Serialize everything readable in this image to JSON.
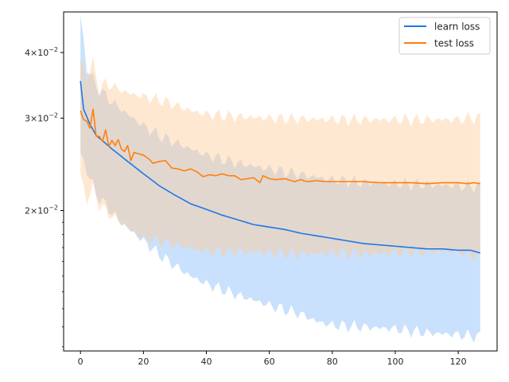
{
  "chart_data": {
    "type": "line",
    "title": "",
    "xlabel": "",
    "ylabel": "",
    "x_range": [
      0,
      127
    ],
    "xlim": [
      -5.35,
      132.35
    ],
    "ylim": [
      0.0108,
      0.0478
    ],
    "y_scale": "log",
    "grid": false,
    "legend_position": "top-right",
    "x_ticks": [
      0,
      20,
      40,
      60,
      80,
      100,
      120
    ],
    "x_tick_labels": [
      "0",
      "20",
      "40",
      "60",
      "80",
      "100",
      "120"
    ],
    "y_ticks": [
      0.02,
      0.03,
      0.04
    ],
    "y_tick_labels": [
      {
        "base": "2×10",
        "exp": "−2"
      },
      {
        "base": "3×10",
        "exp": "−2"
      },
      {
        "base": "4×10",
        "exp": "−2"
      }
    ],
    "series": [
      {
        "name": "learn loss",
        "color": "#1f77e4",
        "band_color": "#9cc9f9",
        "mean_points": [
          [
            0,
            0.0353
          ],
          [
            1,
            0.0312
          ],
          [
            3,
            0.0292
          ],
          [
            5,
            0.0278
          ],
          [
            10,
            0.0262
          ],
          [
            15,
            0.0248
          ],
          [
            20,
            0.0235
          ],
          [
            25,
            0.0223
          ],
          [
            30,
            0.0214
          ],
          [
            35,
            0.0206
          ],
          [
            40,
            0.0201
          ],
          [
            45,
            0.0196
          ],
          [
            50,
            0.0192
          ],
          [
            55,
            0.0188
          ],
          [
            60,
            0.0186
          ],
          [
            65,
            0.0184
          ],
          [
            70,
            0.0181
          ],
          [
            75,
            0.0179
          ],
          [
            80,
            0.0177
          ],
          [
            85,
            0.0175
          ],
          [
            90,
            0.0173
          ],
          [
            95,
            0.0172
          ],
          [
            100,
            0.0171
          ],
          [
            105,
            0.017
          ],
          [
            110,
            0.0169
          ],
          [
            115,
            0.0169
          ],
          [
            120,
            0.0168
          ],
          [
            124,
            0.0168
          ],
          [
            127,
            0.0166
          ]
        ],
        "upper_points": [
          [
            0,
            0.0465
          ],
          [
            2,
            0.0375
          ],
          [
            5,
            0.0345
          ],
          [
            10,
            0.0322
          ],
          [
            15,
            0.0305
          ],
          [
            20,
            0.029
          ],
          [
            25,
            0.0278
          ],
          [
            30,
            0.027
          ],
          [
            35,
            0.0262
          ],
          [
            40,
            0.0255
          ],
          [
            50,
            0.0246
          ],
          [
            60,
            0.024
          ],
          [
            70,
            0.0234
          ],
          [
            80,
            0.0229
          ],
          [
            90,
            0.0226
          ],
          [
            100,
            0.0225
          ],
          [
            110,
            0.0224
          ],
          [
            120,
            0.0223
          ],
          [
            127,
            0.0222
          ]
        ],
        "lower_points": [
          [
            0,
            0.0255
          ],
          [
            5,
            0.0215
          ],
          [
            10,
            0.0198
          ],
          [
            15,
            0.0185
          ],
          [
            20,
            0.0175
          ],
          [
            25,
            0.0165
          ],
          [
            30,
            0.0157
          ],
          [
            35,
            0.015
          ],
          [
            40,
            0.0145
          ],
          [
            50,
            0.0138
          ],
          [
            60,
            0.0132
          ],
          [
            70,
            0.0127
          ],
          [
            75,
            0.0123
          ],
          [
            80,
            0.0121
          ],
          [
            90,
            0.012
          ],
          [
            100,
            0.0119
          ],
          [
            110,
            0.0117
          ],
          [
            120,
            0.0116
          ],
          [
            127,
            0.0115
          ]
        ]
      },
      {
        "name": "test loss",
        "color": "#ff7f0e",
        "band_color": "#ffcc99",
        "mean_points": [
          [
            0,
            0.031
          ],
          [
            1,
            0.0298
          ],
          [
            2,
            0.0296
          ],
          [
            3,
            0.0287
          ],
          [
            4,
            0.0312
          ],
          [
            5,
            0.0277
          ],
          [
            6,
            0.0277
          ],
          [
            7,
            0.0271
          ],
          [
            8,
            0.0285
          ],
          [
            9,
            0.0265
          ],
          [
            10,
            0.0272
          ],
          [
            11,
            0.0266
          ],
          [
            12,
            0.0273
          ],
          [
            13,
            0.0262
          ],
          [
            14,
            0.0259
          ],
          [
            15,
            0.0266
          ],
          [
            16,
            0.0249
          ],
          [
            17,
            0.0258
          ],
          [
            19,
            0.0256
          ],
          [
            20,
            0.0255
          ],
          [
            22,
            0.025
          ],
          [
            23,
            0.0246
          ],
          [
            25,
            0.0248
          ],
          [
            27,
            0.0249
          ],
          [
            29,
            0.0241
          ],
          [
            31,
            0.024
          ],
          [
            33,
            0.0238
          ],
          [
            35,
            0.024
          ],
          [
            37,
            0.0237
          ],
          [
            39,
            0.0232
          ],
          [
            41,
            0.0234
          ],
          [
            43,
            0.0233
          ],
          [
            45,
            0.0235
          ],
          [
            47,
            0.0233
          ],
          [
            49,
            0.0233
          ],
          [
            51,
            0.0229
          ],
          [
            53,
            0.023
          ],
          [
            55,
            0.0231
          ],
          [
            57,
            0.0226
          ],
          [
            58,
            0.0233
          ],
          [
            60,
            0.023
          ],
          [
            62,
            0.0229
          ],
          [
            65,
            0.023
          ],
          [
            68,
            0.0227
          ],
          [
            70,
            0.0229
          ],
          [
            72,
            0.0227
          ],
          [
            75,
            0.0228
          ],
          [
            78,
            0.0227
          ],
          [
            80,
            0.0227
          ],
          [
            85,
            0.0227
          ],
          [
            90,
            0.0227
          ],
          [
            95,
            0.0226
          ],
          [
            100,
            0.0226
          ],
          [
            105,
            0.0226
          ],
          [
            110,
            0.0225
          ],
          [
            115,
            0.0226
          ],
          [
            120,
            0.0226
          ],
          [
            123,
            0.0225
          ],
          [
            125,
            0.0226
          ],
          [
            127,
            0.0225
          ]
        ],
        "upper_points": [
          [
            0,
            0.0385
          ],
          [
            2,
            0.036
          ],
          [
            4,
            0.0382
          ],
          [
            6,
            0.034
          ],
          [
            8,
            0.035
          ],
          [
            10,
            0.0345
          ],
          [
            15,
            0.0335
          ],
          [
            20,
            0.033
          ],
          [
            25,
            0.0325
          ],
          [
            30,
            0.0318
          ],
          [
            35,
            0.031
          ],
          [
            40,
            0.0305
          ],
          [
            50,
            0.0302
          ],
          [
            60,
            0.03
          ],
          [
            70,
            0.0299
          ],
          [
            80,
            0.0298
          ],
          [
            90,
            0.0298
          ],
          [
            100,
            0.0298
          ],
          [
            110,
            0.0298
          ],
          [
            120,
            0.0298
          ],
          [
            126,
            0.0301
          ],
          [
            127,
            0.03
          ]
        ],
        "lower_points": [
          [
            0,
            0.0232
          ],
          [
            2,
            0.021
          ],
          [
            4,
            0.022
          ],
          [
            6,
            0.0205
          ],
          [
            10,
            0.0195
          ],
          [
            15,
            0.0185
          ],
          [
            20,
            0.0177
          ],
          [
            25,
            0.0175
          ],
          [
            30,
            0.0172
          ],
          [
            40,
            0.0167
          ],
          [
            50,
            0.0167
          ],
          [
            60,
            0.0166
          ],
          [
            70,
            0.0165
          ],
          [
            80,
            0.0166
          ],
          [
            90,
            0.0165
          ],
          [
            100,
            0.0166
          ],
          [
            110,
            0.0167
          ],
          [
            120,
            0.0167
          ],
          [
            126,
            0.0163
          ],
          [
            127,
            0.0164
          ]
        ]
      }
    ]
  }
}
